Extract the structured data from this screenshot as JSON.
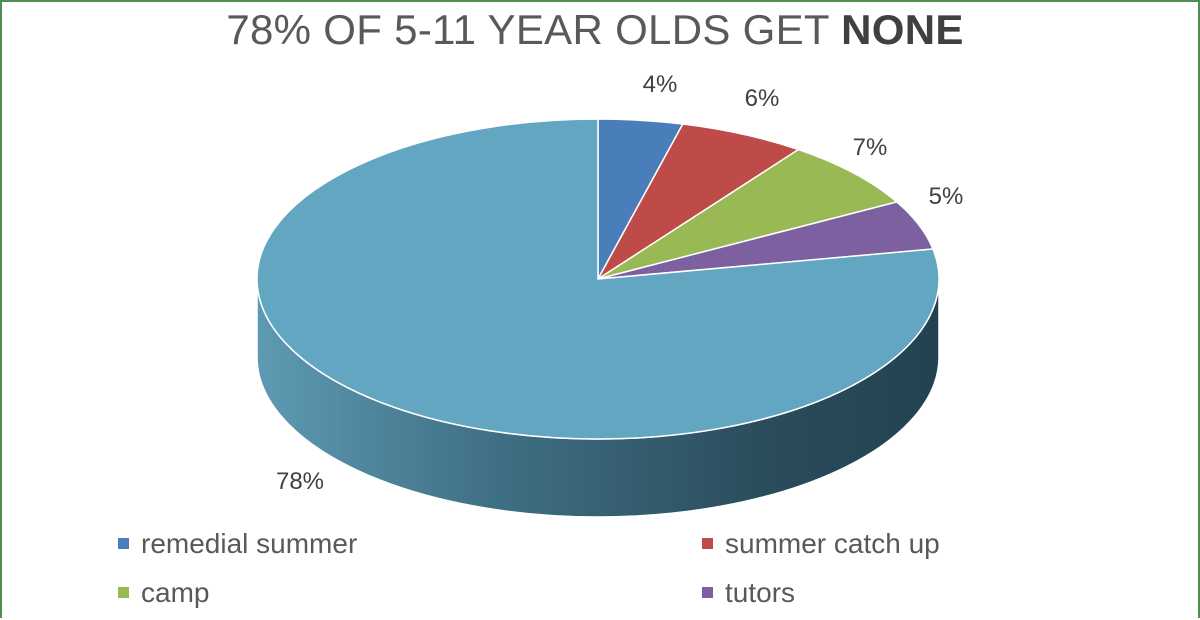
{
  "chart_data": {
    "type": "pie",
    "style": "3d",
    "title_main": "78% OF 5-11 YEAR OLDS GET",
    "title_bold": "NONE",
    "slices": [
      {
        "name": "remedial summer",
        "value": 4,
        "label": "4%",
        "color": "#4a7ebb"
      },
      {
        "name": "summer catch up",
        "value": 6,
        "label": "6%",
        "color": "#be4b48"
      },
      {
        "name": "camp",
        "value": 7,
        "label": "7%",
        "color": "#98b954"
      },
      {
        "name": "tutors",
        "value": 5,
        "label": "5%",
        "color": "#7d60a0"
      },
      {
        "name": "",
        "value": 78,
        "label": "78%",
        "color": "#62a6c2"
      }
    ],
    "legend_placement": "bottom"
  }
}
